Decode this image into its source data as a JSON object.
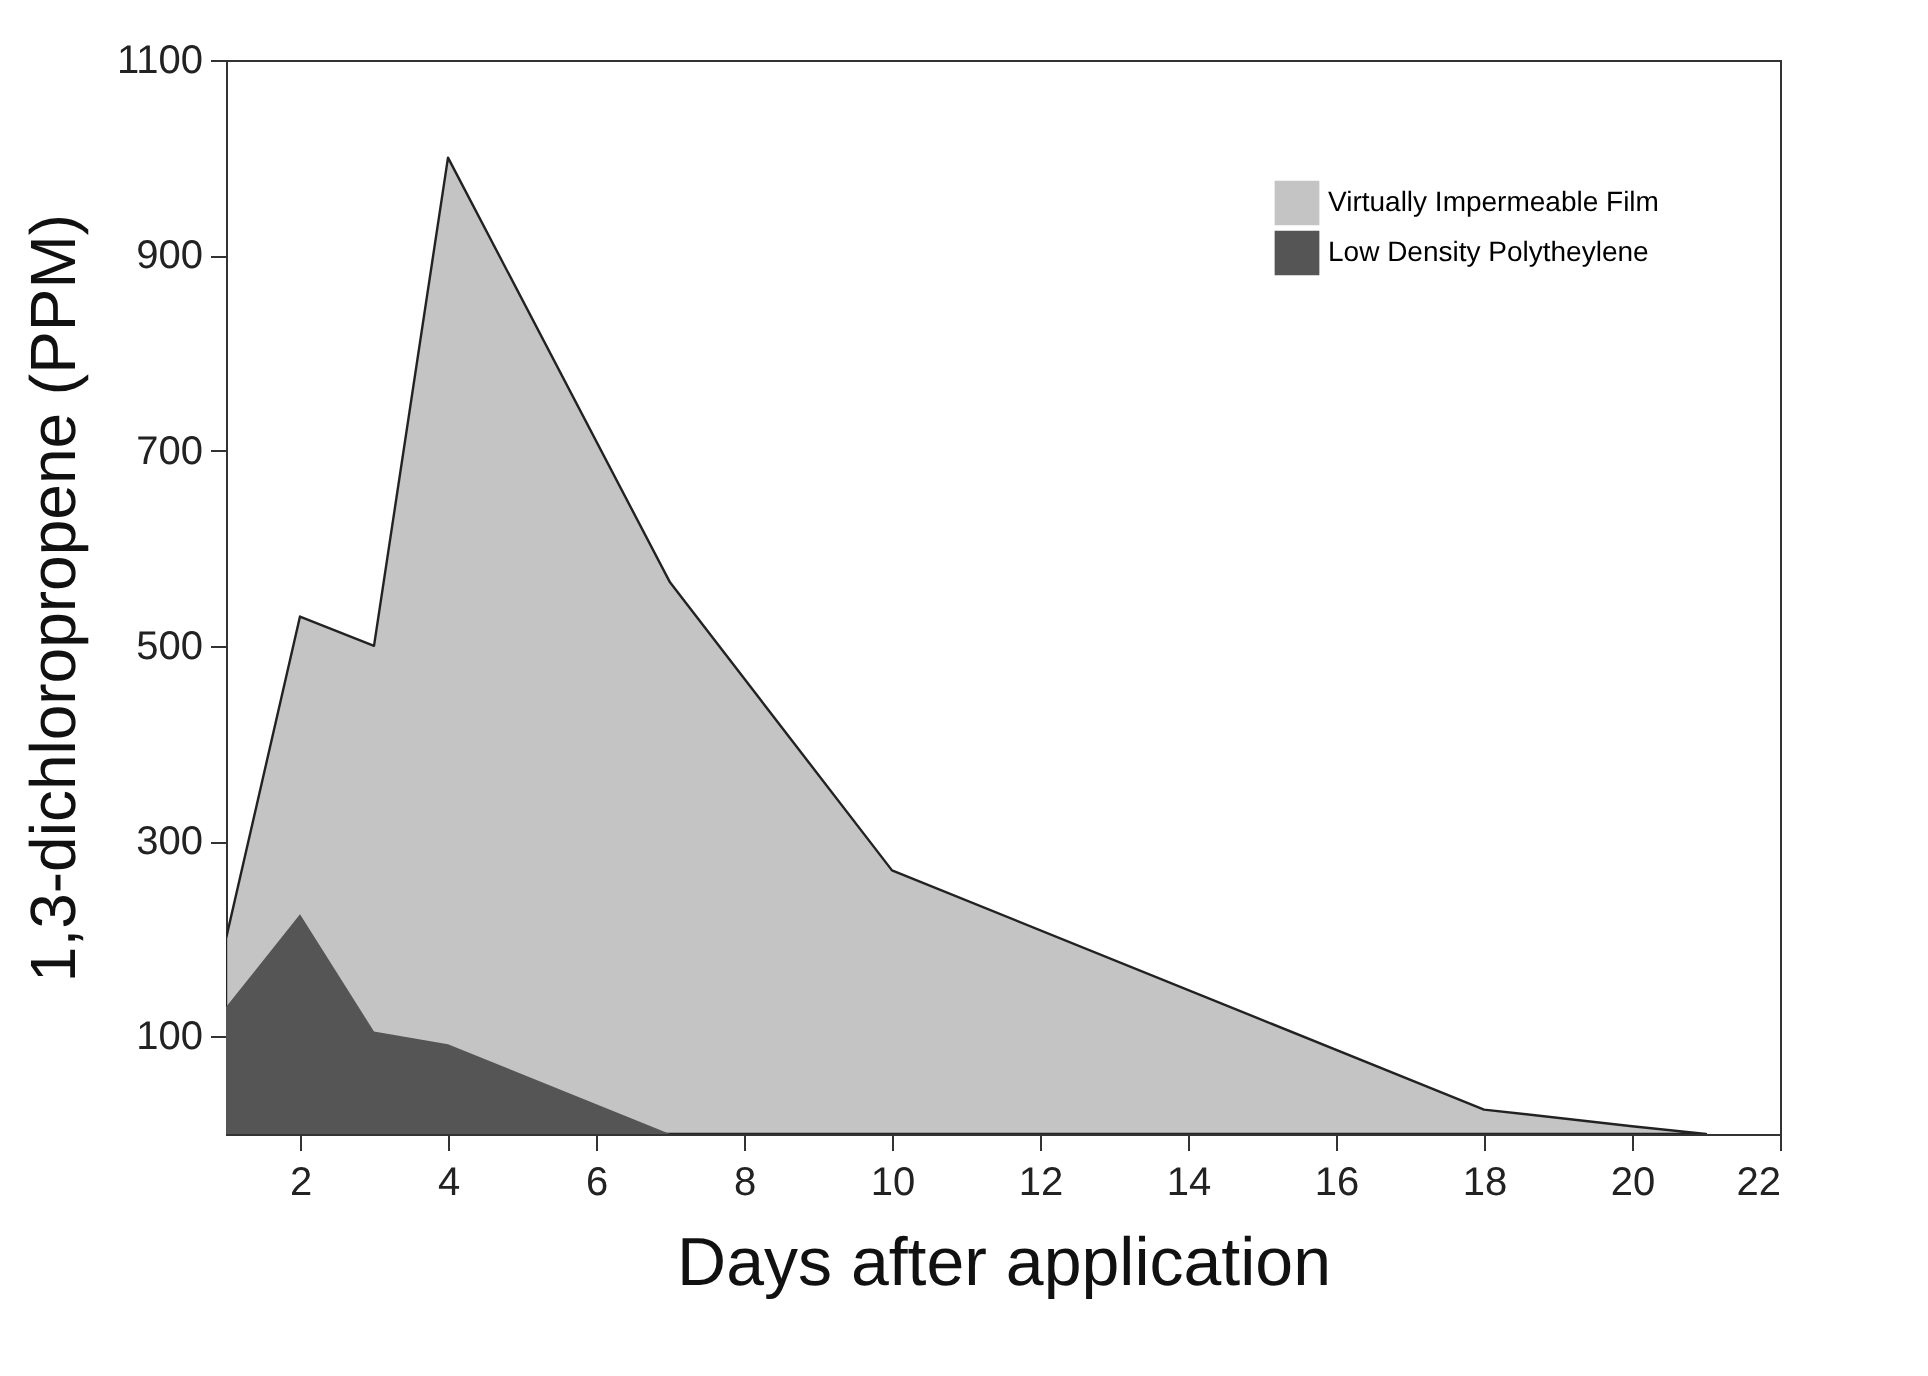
{
  "chart_data": {
    "type": "area",
    "xlabel": "Days after application",
    "ylabel": "1,3-dichloropropene (PPM)",
    "x": [
      1,
      2,
      3,
      4,
      7,
      10,
      18,
      20,
      21
    ],
    "series": [
      {
        "name": "Virtually Impermeable Film",
        "color": "#c4c4c4",
        "values": [
          200,
          530,
          500,
          1000,
          565,
          270,
          25,
          8,
          0
        ]
      },
      {
        "name": "Low Density Polytheylene",
        "color": "#555555",
        "values": [
          130,
          225,
          105,
          92,
          0,
          null,
          null,
          null,
          null
        ]
      }
    ],
    "xlim": [
      1,
      22
    ],
    "xticks": [
      2,
      4,
      6,
      8,
      10,
      12,
      14,
      16,
      18,
      20,
      22
    ],
    "ylim": [
      0,
      1100
    ],
    "yticks": [
      100,
      300,
      500,
      700,
      900,
      1100
    ],
    "grid": false,
    "legend": "top right"
  }
}
